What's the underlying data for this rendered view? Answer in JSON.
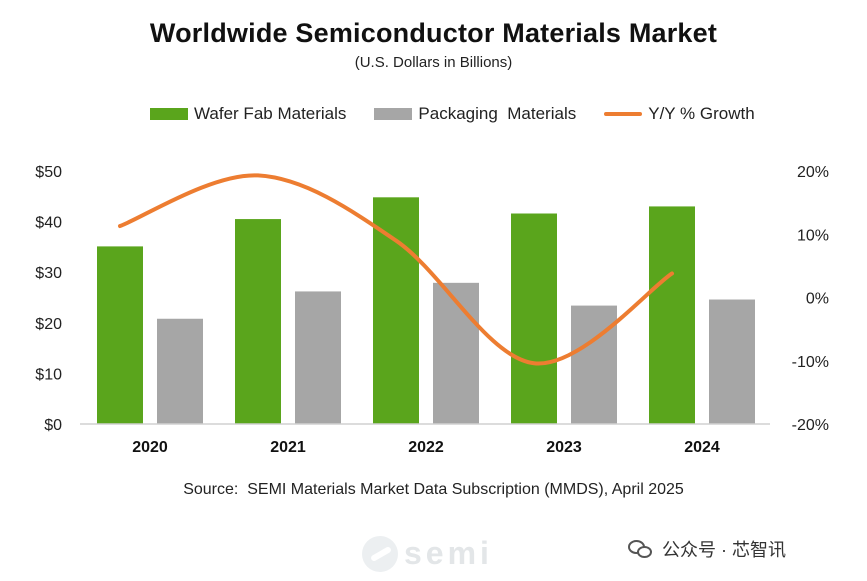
{
  "chart_data": {
    "type": "bar",
    "title": "Worldwide Semiconductor Materials Market",
    "subtitle": "(U.S. Dollars in Billions)",
    "categories": [
      "2020",
      "2021",
      "2022",
      "2023",
      "2024"
    ],
    "series": [
      {
        "name": "Wafer Fab Materials",
        "type": "bar",
        "axis": "left",
        "color": "#5aa51c",
        "values": [
          35.1,
          40.5,
          44.8,
          41.6,
          43.0
        ]
      },
      {
        "name": "Packaging  Materials",
        "type": "bar",
        "axis": "left",
        "color": "#a6a6a6",
        "values": [
          20.8,
          26.2,
          27.9,
          23.4,
          24.6
        ]
      },
      {
        "name": "Y/Y % Growth",
        "type": "line",
        "axis": "right",
        "color": "#ed7d31",
        "values": [
          11.3,
          19.3,
          9.0,
          -10.4,
          3.8
        ]
      }
    ],
    "left_axis": {
      "min": 0,
      "max": 50,
      "ticks": [
        0,
        10,
        20,
        30,
        40,
        50
      ],
      "tick_labels": [
        "$0",
        "$10",
        "$20",
        "$30",
        "$40",
        "$50"
      ]
    },
    "right_axis": {
      "min": -20,
      "max": 20,
      "ticks": [
        -20,
        -10,
        0,
        10,
        20
      ],
      "tick_labels": [
        "-20%",
        "-10%",
        "0%",
        "10%",
        "20%"
      ]
    },
    "legend_position": "top",
    "grid": false
  },
  "source": "Source:  SEMI Materials Market Data Subscription (MMDS), April 2025",
  "watermark": {
    "logo_text": "semi",
    "wechat_text": "公众号 · 芯智讯"
  }
}
